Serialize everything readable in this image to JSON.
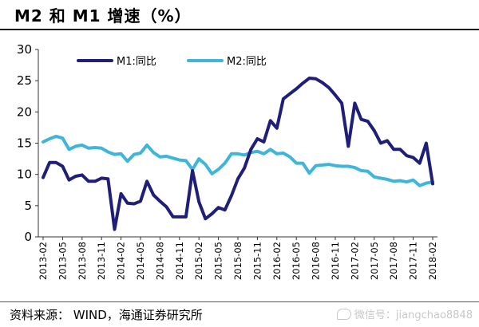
{
  "header": {
    "title": "M2 和 M1 增速（%）"
  },
  "footer": {
    "source": "资料来源：  WIND，海通证券研究所",
    "watermark": "微信号：jiangchao8848"
  },
  "colors": {
    "m1": "#1f1f7a",
    "m2": "#3fb6d9"
  },
  "chart_data": {
    "type": "line",
    "title": "M2 和 M1 增速（%）",
    "xlabel": "",
    "ylabel": "",
    "ylim": [
      0,
      30
    ],
    "yticks": [
      0,
      5,
      10,
      15,
      20,
      25,
      30
    ],
    "legend_position": "top",
    "x_tick_labels": [
      "2013-02",
      "2013-05",
      "2013-08",
      "2013-11",
      "2014-02",
      "2014-05",
      "2014-08",
      "2014-11",
      "2015-02",
      "2015-05",
      "2015-08",
      "2015-11",
      "2016-02",
      "2016-05",
      "2016-08",
      "2016-11",
      "2017-02",
      "2017-05",
      "2017-08",
      "2017-11",
      "2018-02"
    ],
    "x": [
      "2013-02",
      "2013-03",
      "2013-04",
      "2013-05",
      "2013-06",
      "2013-07",
      "2013-08",
      "2013-09",
      "2013-10",
      "2013-11",
      "2013-12",
      "2014-01",
      "2014-02",
      "2014-03",
      "2014-04",
      "2014-05",
      "2014-06",
      "2014-07",
      "2014-08",
      "2014-09",
      "2014-10",
      "2014-11",
      "2014-12",
      "2015-01",
      "2015-02",
      "2015-03",
      "2015-04",
      "2015-05",
      "2015-06",
      "2015-07",
      "2015-08",
      "2015-09",
      "2015-10",
      "2015-11",
      "2015-12",
      "2016-01",
      "2016-02",
      "2016-03",
      "2016-04",
      "2016-05",
      "2016-06",
      "2016-07",
      "2016-08",
      "2016-09",
      "2016-10",
      "2016-11",
      "2016-12",
      "2017-01",
      "2017-02",
      "2017-03",
      "2017-04",
      "2017-05",
      "2017-06",
      "2017-07",
      "2017-08",
      "2017-09",
      "2017-10",
      "2017-11",
      "2017-12",
      "2018-01",
      "2018-02"
    ],
    "series": [
      {
        "name": "M1:同比",
        "values": [
          9.5,
          11.9,
          11.9,
          11.3,
          9.1,
          9.7,
          9.9,
          8.9,
          8.9,
          9.4,
          9.3,
          1.2,
          6.9,
          5.4,
          5.3,
          5.7,
          8.9,
          6.7,
          5.7,
          4.8,
          3.2,
          3.2,
          3.2,
          10.6,
          5.6,
          2.9,
          3.7,
          4.7,
          4.3,
          6.6,
          9.3,
          11.0,
          14.0,
          15.7,
          15.2,
          18.6,
          17.4,
          22.1,
          22.9,
          23.7,
          24.6,
          25.4,
          25.3,
          24.7,
          23.9,
          22.7,
          21.4,
          14.5,
          21.4,
          18.8,
          18.5,
          17.0,
          15.0,
          15.4,
          14.0,
          14.0,
          13.0,
          12.7,
          11.8,
          15.0,
          8.5
        ]
      },
      {
        "name": "M2:同比",
        "values": [
          15.2,
          15.7,
          16.1,
          15.8,
          14.0,
          14.5,
          14.7,
          14.2,
          14.3,
          14.2,
          13.6,
          13.2,
          13.3,
          12.1,
          13.2,
          13.4,
          14.7,
          13.5,
          12.8,
          12.9,
          12.6,
          12.3,
          12.2,
          10.8,
          12.5,
          11.6,
          10.1,
          10.8,
          11.8,
          13.3,
          13.3,
          13.1,
          13.5,
          13.7,
          13.3,
          14.0,
          13.3,
          13.4,
          12.8,
          11.8,
          11.8,
          10.2,
          11.4,
          11.5,
          11.6,
          11.4,
          11.3,
          11.3,
          11.1,
          10.6,
          10.5,
          9.6,
          9.4,
          9.2,
          8.9,
          9.0,
          8.8,
          9.1,
          8.2,
          8.6,
          8.8
        ]
      }
    ]
  }
}
